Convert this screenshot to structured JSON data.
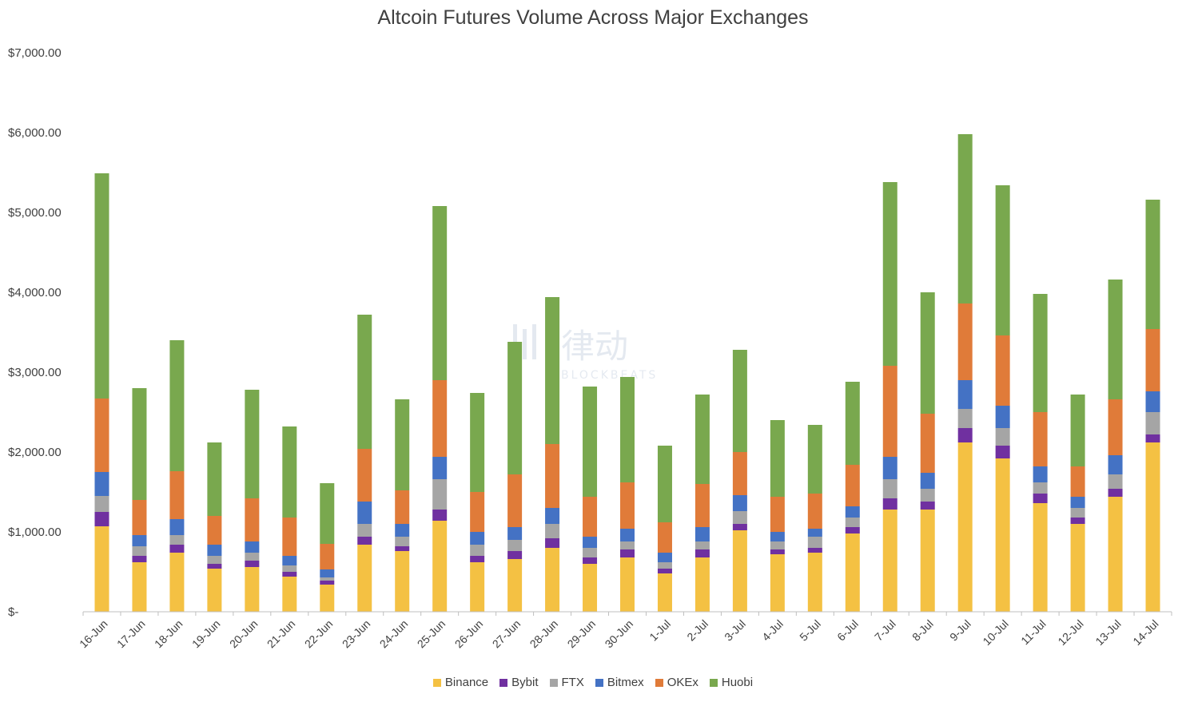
{
  "chart_data": {
    "type": "bar",
    "stacked": true,
    "title": "Altcoin Futures Volume Across Major Exchanges",
    "xlabel": "",
    "ylabel": "",
    "ylim": [
      0,
      7000
    ],
    "yticks": [
      0,
      1000,
      2000,
      3000,
      4000,
      5000,
      6000,
      7000
    ],
    "ytick_labels": [
      "$-",
      "$1,000.00",
      "$2,000.00",
      "$3,000.00",
      "$4,000.00",
      "$5,000.00",
      "$6,000.00",
      "$7,000.00"
    ],
    "grid": false,
    "legend_position": "bottom",
    "categories": [
      "16-Jun",
      "17-Jun",
      "18-Jun",
      "19-Jun",
      "20-Jun",
      "21-Jun",
      "22-Jun",
      "23-Jun",
      "24-Jun",
      "25-Jun",
      "26-Jun",
      "27-Jun",
      "28-Jun",
      "29-Jun",
      "30-Jun",
      "1-Jul",
      "2-Jul",
      "3-Jul",
      "4-Jul",
      "5-Jul",
      "6-Jul",
      "7-Jul",
      "8-Jul",
      "9-Jul",
      "10-Jul",
      "11-Jul",
      "12-Jul",
      "13-Jul",
      "14-Jul"
    ],
    "series": [
      {
        "name": "Binance",
        "color": "#F4C143",
        "values": [
          1070,
          620,
          740,
          540,
          560,
          440,
          340,
          840,
          760,
          1140,
          620,
          660,
          800,
          600,
          680,
          480,
          680,
          1020,
          720,
          740,
          980,
          1280,
          1280,
          2120,
          1920,
          1360,
          1100,
          1440,
          2120
        ]
      },
      {
        "name": "Bybit",
        "color": "#7030A0",
        "values": [
          180,
          80,
          100,
          60,
          80,
          60,
          50,
          100,
          60,
          140,
          80,
          100,
          120,
          80,
          100,
          60,
          100,
          80,
          60,
          60,
          80,
          140,
          100,
          180,
          160,
          120,
          80,
          100,
          100
        ]
      },
      {
        "name": "FTX",
        "color": "#A5A5A5",
        "values": [
          200,
          120,
          120,
          100,
          100,
          80,
          40,
          160,
          120,
          380,
          140,
          140,
          180,
          120,
          100,
          80,
          100,
          160,
          100,
          140,
          120,
          240,
          160,
          240,
          220,
          140,
          120,
          180,
          280
        ]
      },
      {
        "name": "Bitmex",
        "color": "#4472C4",
        "values": [
          300,
          140,
          200,
          140,
          140,
          120,
          100,
          280,
          160,
          280,
          160,
          160,
          200,
          140,
          160,
          120,
          180,
          200,
          120,
          100,
          140,
          280,
          200,
          360,
          280,
          200,
          140,
          240,
          260
        ]
      },
      {
        "name": "OKEx",
        "color": "#E07B39",
        "values": [
          920,
          440,
          600,
          360,
          540,
          480,
          320,
          660,
          420,
          960,
          500,
          660,
          800,
          500,
          580,
          380,
          540,
          540,
          440,
          440,
          520,
          1140,
          740,
          960,
          880,
          680,
          380,
          700,
          780
        ]
      },
      {
        "name": "Huobi",
        "color": "#79A84E",
        "values": [
          2820,
          1400,
          1640,
          920,
          1360,
          1140,
          760,
          1680,
          1140,
          2180,
          1240,
          1660,
          1840,
          1380,
          1320,
          960,
          1120,
          1280,
          960,
          860,
          1040,
          2300,
          1520,
          2120,
          1880,
          1480,
          900,
          1500,
          1620
        ]
      }
    ]
  },
  "watermark": {
    "text_cn": "律动",
    "text_en": "BLOCKBEATS"
  }
}
